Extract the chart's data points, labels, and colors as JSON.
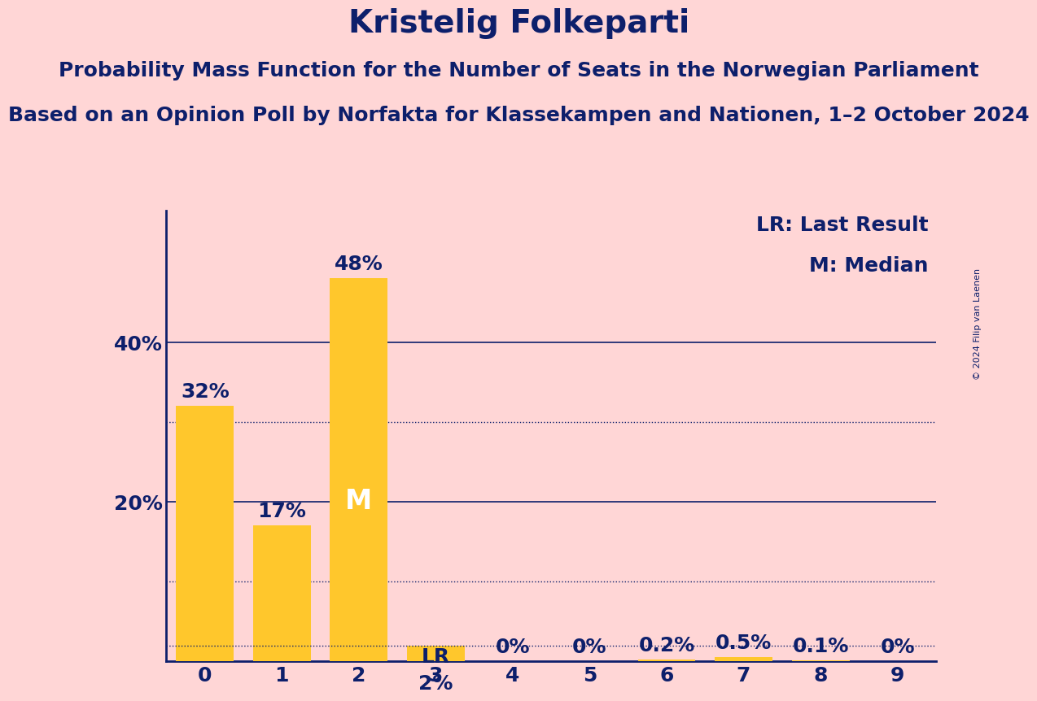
{
  "title": "Kristelig Folkeparti",
  "subtitle1": "Probability Mass Function for the Number of Seats in the Norwegian Parliament",
  "subtitle2": "Based on an Opinion Poll by Norfakta for Klassekampen and Nationen, 1–2 October 2024",
  "copyright": "© 2024 Filip van Laenen",
  "categories": [
    0,
    1,
    2,
    3,
    4,
    5,
    6,
    7,
    8,
    9
  ],
  "values": [
    0.32,
    0.17,
    0.48,
    0.02,
    0.0,
    0.0,
    0.002,
    0.005,
    0.001,
    0.0
  ],
  "labels": [
    "32%",
    "17%",
    "48%",
    "2%",
    "0%",
    "0%",
    "0.2%",
    "0.5%",
    "0.1%",
    "0%"
  ],
  "bar_color": "#FFC72C",
  "background_color": "#FFD6D6",
  "text_color": "#0D1F6B",
  "median_seat": 2,
  "lr_seat": 3,
  "lr_value": 0.02,
  "ylim": [
    0,
    0.565
  ],
  "yticks": [
    0.0,
    0.2,
    0.4
  ],
  "ytick_labels": [
    "",
    "20%",
    "40%"
  ],
  "solid_gridlines": [
    0.2,
    0.4
  ],
  "dotted_gridlines": [
    0.3,
    0.1
  ],
  "legend_lr": "LR: Last Result",
  "legend_m": "M: Median",
  "title_fontsize": 28,
  "subtitle_fontsize": 18,
  "label_fontsize": 18,
  "axis_fontsize": 18,
  "legend_fontsize": 18
}
